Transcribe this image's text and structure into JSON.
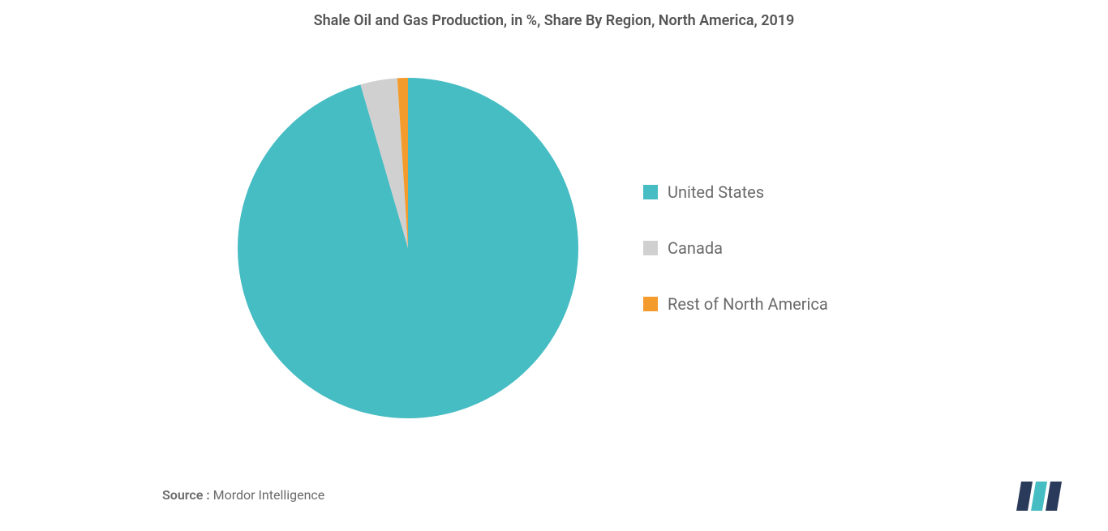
{
  "chart": {
    "type": "pie",
    "title": "Shale Oil and Gas Production, in %, Share By Region, North America, 2019",
    "title_fontsize": 18,
    "title_fontweight": 600,
    "title_color": "#545454",
    "background_color": "#ffffff",
    "pie_radius": 210,
    "slices": [
      {
        "label": "United States",
        "value": 95.5,
        "color": "#46bcc3"
      },
      {
        "label": "Canada",
        "value": 3.5,
        "color": "#d0d0d0"
      },
      {
        "label": "Rest of North America",
        "value": 1.0,
        "color": "#f39b2c"
      }
    ],
    "legend": {
      "position": "right",
      "fontsize": 20,
      "text_color": "#6a6a6a",
      "swatch_size": 18,
      "item_gap": 45
    }
  },
  "source": {
    "label": "Source :",
    "value": "Mordor Intelligence",
    "fontsize": 16,
    "color": "#6a6a6a"
  },
  "logo": {
    "bar1_color": "#2a3a5a",
    "bar2_color": "#46bcc3",
    "bar3_color": "#2a3a5a"
  }
}
